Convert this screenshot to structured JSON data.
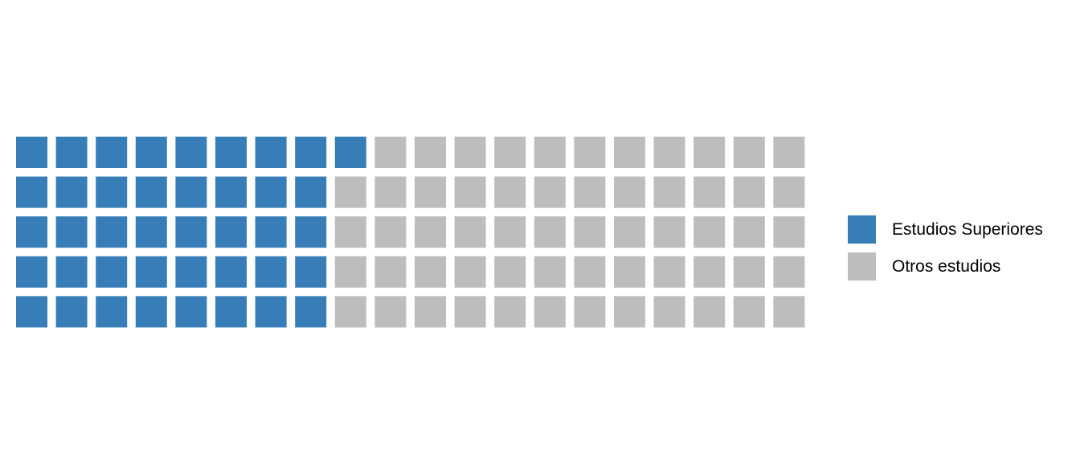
{
  "chart_data": {
    "type": "waffle",
    "rows": 5,
    "columns": 20,
    "fill_order": "column-major, top-to-bottom",
    "series": [
      {
        "name": "Estudios Superiores",
        "value": 41,
        "color": "#377eb8"
      },
      {
        "name": "Otros estudios",
        "value": 59,
        "color": "#bdbdbd"
      }
    ],
    "legend_position": "right"
  }
}
